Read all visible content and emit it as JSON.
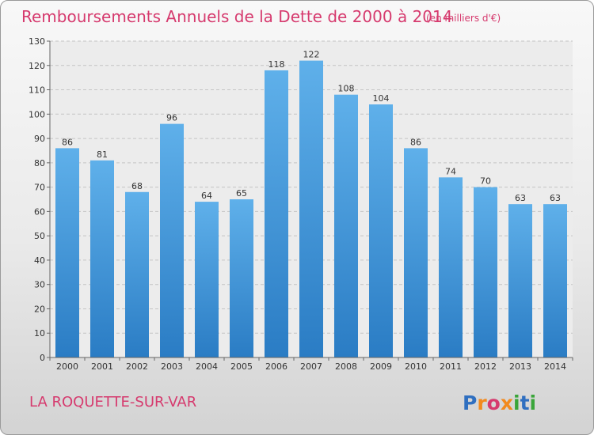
{
  "chart_data": {
    "type": "bar",
    "title": "Remboursements Annuels de la Dette de 2000 à 2014",
    "subtitle": "(en milliers d'€)",
    "categories": [
      "2000",
      "2001",
      "2002",
      "2003",
      "2004",
      "2005",
      "2006",
      "2007",
      "2008",
      "2009",
      "2010",
      "2011",
      "2012",
      "2013",
      "2014"
    ],
    "values": [
      86,
      81,
      68,
      96,
      64,
      65,
      118,
      122,
      108,
      104,
      86,
      74,
      70,
      63,
      63
    ],
    "ylim": [
      0,
      130
    ],
    "yticks": [
      0,
      10,
      20,
      30,
      40,
      50,
      60,
      70,
      80,
      90,
      100,
      110,
      120,
      130
    ],
    "xlabel": "",
    "ylabel": "",
    "grid": true,
    "bar_color": "#4f9fdb"
  },
  "location": "LA ROQUETTE-SUR-VAR",
  "logo": {
    "letters": [
      "P",
      "r",
      "o",
      "x",
      "i",
      "t",
      "i"
    ],
    "colors": [
      "#2f6fc0",
      "#f28a1e",
      "#d63a6e",
      "#f28a1e",
      "#3aa53a",
      "#2f6fc0",
      "#3aa53a"
    ]
  }
}
